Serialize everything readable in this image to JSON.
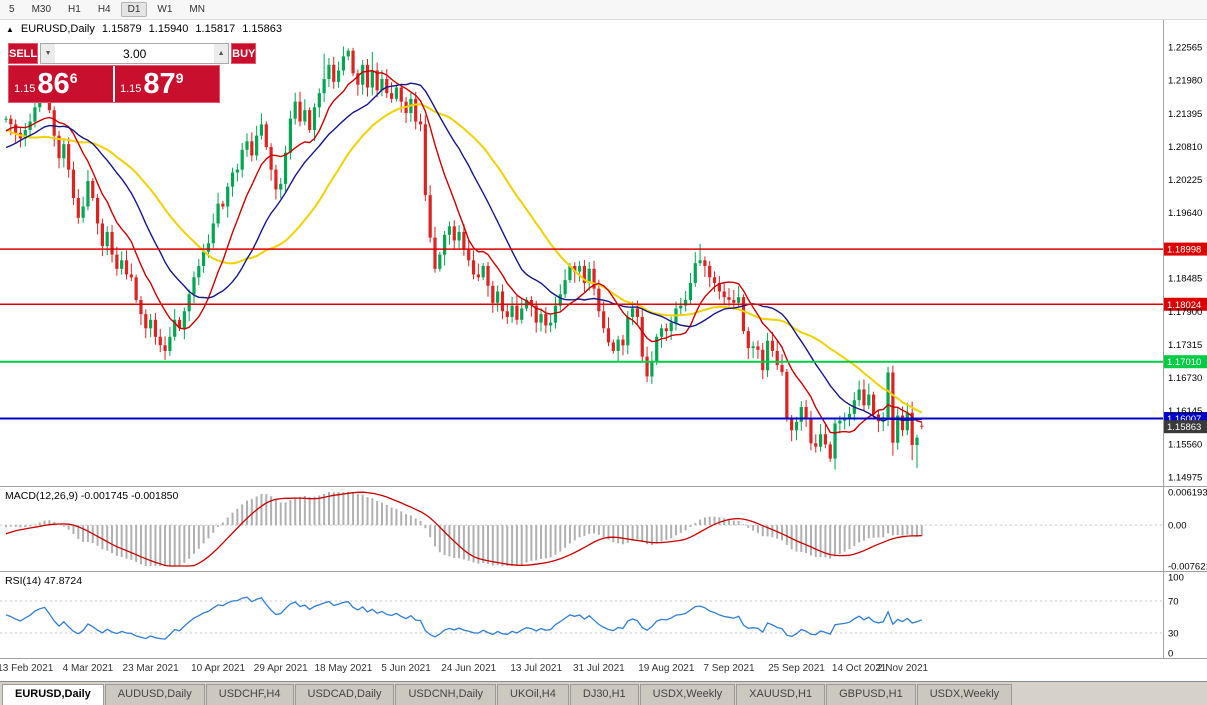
{
  "toolbar": {
    "timeframes": [
      "5",
      "M30",
      "H1",
      "H4",
      "D1",
      "W1",
      "MN"
    ],
    "active": "D1"
  },
  "chart_header": {
    "symbol_title": "EURUSD,Daily",
    "open": "1.15879",
    "high": "1.15940",
    "low": "1.15817",
    "close": "1.15863"
  },
  "trade_panel": {
    "sell_label": "SELL",
    "buy_label": "BUY",
    "volume": "3.00",
    "sell_prefix": "1.15",
    "sell_big": "86",
    "sell_sup": "6",
    "buy_prefix": "1.15",
    "buy_big": "87",
    "buy_sup": "9"
  },
  "indicators": {
    "macd_label": "MACD(12,26,9) -0.001745 -0.001850",
    "rsi_label": "RSI(14) 47.8724",
    "macd_axis_labels": [
      "0.006193",
      "0.00",
      "-0.007621"
    ],
    "rsi_axis_labels": [
      "100",
      "70",
      "30",
      "0"
    ]
  },
  "price_axis_labels": [
    "1.22565",
    "1.21980",
    "1.21395",
    "1.20810",
    "1.20225",
    "1.19640",
    "1.18485",
    "1.17900",
    "1.17315",
    "1.16730",
    "1.16145",
    "1.15560",
    "1.14975"
  ],
  "tabs": [
    "EURUSD,Daily",
    "AUDUSD,Daily",
    "USDCHF,H4",
    "USDCAD,Daily",
    "USDCNH,Daily",
    "UKOil,H4",
    "DJ30,H1",
    "USDX,Weekly",
    "XAUUSD,H1",
    "GBPUSD,H1",
    "USDX,Weekly"
  ],
  "colors": {
    "up": "#00a651",
    "down": "#dd2222",
    "ma_slow": "#f2d100",
    "ma_fast": "#cc0000",
    "ma_mid": "#16168c",
    "macd_hist": "#b0b0b0",
    "macd_signal": "#cc0000",
    "rsi": "#2f7ed8",
    "panel_red": "#c8102e",
    "axis_text": "#000000",
    "date_text": "#333333",
    "separator": "#a0a0a0",
    "grid_dotted": "#c9c9c9"
  },
  "chart_data": {
    "type": "candlestick",
    "symbol": "EURUSD",
    "timeframe": "Daily",
    "title": "EURUSD,Daily",
    "ylim": [
      1.14975,
      1.22565
    ],
    "grid_step": 0.00585,
    "levels": [
      {
        "price": 1.18998,
        "label": "1.18998",
        "color": "#dd0000",
        "width": 1.5
      },
      {
        "price": 1.18024,
        "label": "1.18024",
        "color": "#dd0000",
        "width": 1.5
      },
      {
        "price": 1.1701,
        "label": "1.17010",
        "color": "#00cc44",
        "width": 2
      },
      {
        "price": 1.16007,
        "label": "1.16007",
        "color": "#0000cc",
        "width": 2
      }
    ],
    "bid": {
      "price": 1.15863,
      "label": "1.15863",
      "color": "#3a3a3a"
    },
    "moving_averages": [
      {
        "period": 34,
        "color_key": "ma_slow",
        "width": 2
      },
      {
        "period": 10,
        "color_key": "ma_fast",
        "width": 1.4
      },
      {
        "period": 21,
        "color_key": "ma_mid",
        "width": 1.4
      }
    ],
    "macd": {
      "fast": 12,
      "slow": 26,
      "signal": 9,
      "current": "-0.001745 -0.001850",
      "scale_max": 0.006193,
      "scale_min": -0.007621
    },
    "rsi": {
      "period": 14,
      "current": 47.8724,
      "levels": [
        70,
        30
      ],
      "range": [
        0,
        100
      ]
    },
    "date_labels": [
      {
        "label": "13 Feb 2021",
        "index": 4
      },
      {
        "label": "4 Mar 2021",
        "index": 17
      },
      {
        "label": "23 Mar 2021",
        "index": 30
      },
      {
        "label": "10 Apr 2021",
        "index": 44
      },
      {
        "label": "29 Apr 2021",
        "index": 57
      },
      {
        "label": "18 May 2021",
        "index": 70
      },
      {
        "label": "5 Jun 2021",
        "index": 83
      },
      {
        "label": "24 Jun 2021",
        "index": 96
      },
      {
        "label": "13 Jul 2021",
        "index": 110
      },
      {
        "label": "31 Jul 2021",
        "index": 123
      },
      {
        "label": "19 Aug 2021",
        "index": 137
      },
      {
        "label": "7 Sep 2021",
        "index": 150
      },
      {
        "label": "25 Sep 2021",
        "index": 164
      },
      {
        "label": "14 Oct 2021",
        "index": 177
      },
      {
        "label": "2 Nov 2021",
        "index": 186
      }
    ],
    "pre_closes": [
      1.225,
      1.227,
      1.2285,
      1.23,
      1.228,
      1.2255,
      1.223,
      1.225,
      1.222,
      1.2195,
      1.217,
      1.2185,
      1.216,
      1.214,
      1.2155,
      1.217,
      1.215,
      1.212,
      1.21,
      1.208,
      1.205,
      1.202,
      1.199,
      1.201,
      1.204,
      1.206,
      1.2045,
      1.207,
      1.2095,
      1.211,
      1.209,
      1.207,
      1.2085,
      1.21,
      1.2115,
      1.2095,
      1.2105,
      1.212,
      1.2135,
      1.2128
    ],
    "closes": [
      1.213,
      1.212,
      1.2105,
      1.2095,
      1.211,
      1.2125,
      1.215,
      1.2165,
      1.2175,
      1.2145,
      1.21,
      1.206,
      1.2085,
      1.204,
      1.199,
      1.1955,
      1.1975,
      1.202,
      1.199,
      1.1945,
      1.1905,
      1.193,
      1.189,
      1.1865,
      1.188,
      1.1855,
      1.185,
      1.181,
      1.1785,
      1.176,
      1.1775,
      1.1745,
      1.173,
      1.172,
      1.1745,
      1.1775,
      1.176,
      1.179,
      1.182,
      1.185,
      1.187,
      1.1895,
      1.191,
      1.1945,
      1.198,
      1.1975,
      1.201,
      1.2035,
      1.204,
      1.2075,
      1.209,
      1.2065,
      1.21,
      1.212,
      1.208,
      1.204,
      1.2005,
      1.2015,
      1.207,
      1.213,
      1.216,
      1.2125,
      1.2145,
      1.211,
      1.215,
      1.2175,
      1.22,
      1.2225,
      1.2195,
      1.2215,
      1.224,
      1.225,
      1.221,
      1.219,
      1.2225,
      1.2185,
      1.2215,
      1.218,
      1.22,
      1.2175,
      1.2165,
      1.2185,
      1.216,
      1.214,
      1.2165,
      1.2125,
      1.212,
      1.1995,
      1.192,
      1.1865,
      1.189,
      1.1925,
      1.194,
      1.1915,
      1.193,
      1.19,
      1.188,
      1.1855,
      1.185,
      1.187,
      1.1835,
      1.1805,
      1.1825,
      1.179,
      1.178,
      1.18,
      1.1775,
      1.1795,
      1.181,
      1.18,
      1.177,
      1.1785,
      1.1765,
      1.177,
      1.18,
      1.182,
      1.1845,
      1.187,
      1.186,
      1.187,
      1.184,
      1.1865,
      1.183,
      1.179,
      1.176,
      1.1735,
      1.172,
      1.174,
      1.173,
      1.178,
      1.1795,
      1.178,
      1.171,
      1.1675,
      1.17,
      1.1745,
      1.176,
      1.1755,
      1.177,
      1.1795,
      1.18,
      1.181,
      1.184,
      1.1875,
      1.188,
      1.187,
      1.185,
      1.184,
      1.1825,
      1.1815,
      1.181,
      1.1805,
      1.1815,
      1.1755,
      1.1725,
      1.1728,
      1.1722,
      1.1686,
      1.1738,
      1.172,
      1.1695,
      1.1683,
      1.16,
      1.158,
      1.1595,
      1.1621,
      1.16,
      1.1557,
      1.1551,
      1.1573,
      1.1555,
      1.153,
      1.1592,
      1.1597,
      1.1601,
      1.1609,
      1.1633,
      1.1652,
      1.1624,
      1.1643,
      1.1608,
      1.1596,
      1.1603,
      1.1682,
      1.1558,
      1.1606,
      1.158,
      1.1611,
      1.1554,
      1.1567,
      1.15863
    ],
    "overrides": {
      "33": {
        "l": 1.1704
      },
      "66": {
        "h": 1.2245
      },
      "71": {
        "h": 1.2254
      },
      "76": {
        "h": 1.2248
      },
      "133": {
        "l": 1.1665
      },
      "134": {
        "l": 1.1662
      },
      "144": {
        "h": 1.1909
      },
      "157": {
        "l": 1.167
      },
      "171": {
        "l": 1.1524
      },
      "183": {
        "h": 1.1692
      },
      "184": {
        "l": 1.1535
      },
      "188": {
        "l": 1.1527
      },
      "189": {
        "l": 1.1513
      },
      "190": {
        "o": 1.15879,
        "h": 1.1594,
        "l": 1.15817
      }
    }
  }
}
